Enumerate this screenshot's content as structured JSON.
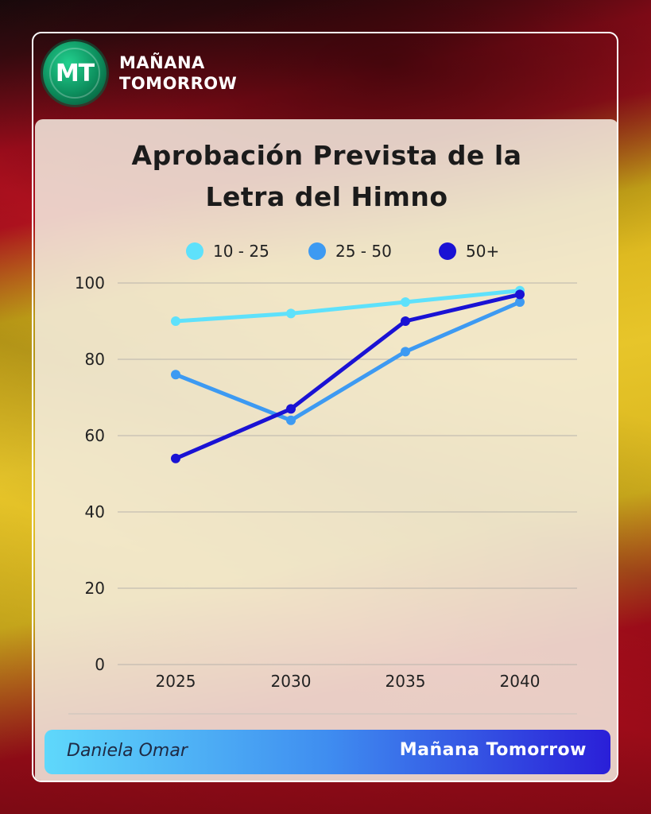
{
  "brand": {
    "logo_initials": "MT",
    "name_line1": "MAÑANA",
    "name_line2": "TOMORROW"
  },
  "footer": {
    "author": "Daniela Omar",
    "brand": "Mañana Tomorrow"
  },
  "chart_data": {
    "type": "line",
    "title_line1": "Aprobación Prevista de la",
    "title_line2": "Letra del Himno",
    "x": [
      "2025",
      "2030",
      "2035",
      "2040"
    ],
    "yticks": [
      "0",
      "20",
      "40",
      "60",
      "80",
      "100"
    ],
    "ylim": [
      0,
      100
    ],
    "grid": true,
    "legend_position": "top",
    "series": [
      {
        "name": "10 - 25",
        "color": "#5ee1fb",
        "values": [
          90,
          92,
          95,
          98
        ]
      },
      {
        "name": "25 - 50",
        "color": "#3d9af2",
        "values": [
          76,
          64,
          82,
          95
        ]
      },
      {
        "name": "50+",
        "color": "#1a12d4",
        "values": [
          54,
          67,
          90,
          97
        ]
      }
    ]
  }
}
